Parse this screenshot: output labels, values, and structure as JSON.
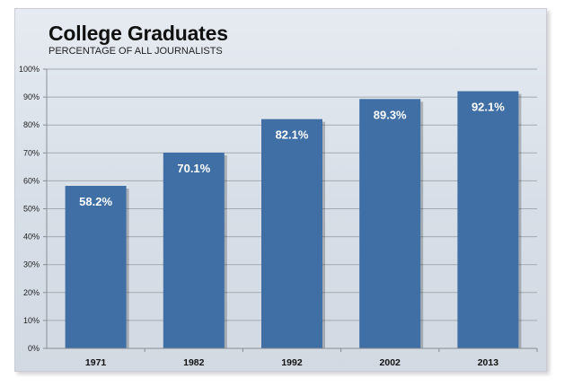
{
  "chart_data": {
    "type": "bar",
    "title": "College Graduates",
    "subtitle": "PERCENTAGE OF ALL JOURNALISTS",
    "categories": [
      "1971",
      "1982",
      "1992",
      "2002",
      "2013"
    ],
    "values": [
      58.2,
      70.1,
      82.1,
      89.3,
      92.1
    ],
    "data_labels": [
      "58.2%",
      "70.1%",
      "82.1%",
      "89.3%",
      "92.1%"
    ],
    "ylim": [
      0,
      100
    ],
    "y_ticks": [
      "0%",
      "10%",
      "20%",
      "30%",
      "40%",
      "50%",
      "60%",
      "70%",
      "80%",
      "90%",
      "100%"
    ],
    "grid": true,
    "legend": "none",
    "bar_color": "#3f6fa5",
    "background_color": "#dbe2ea"
  }
}
